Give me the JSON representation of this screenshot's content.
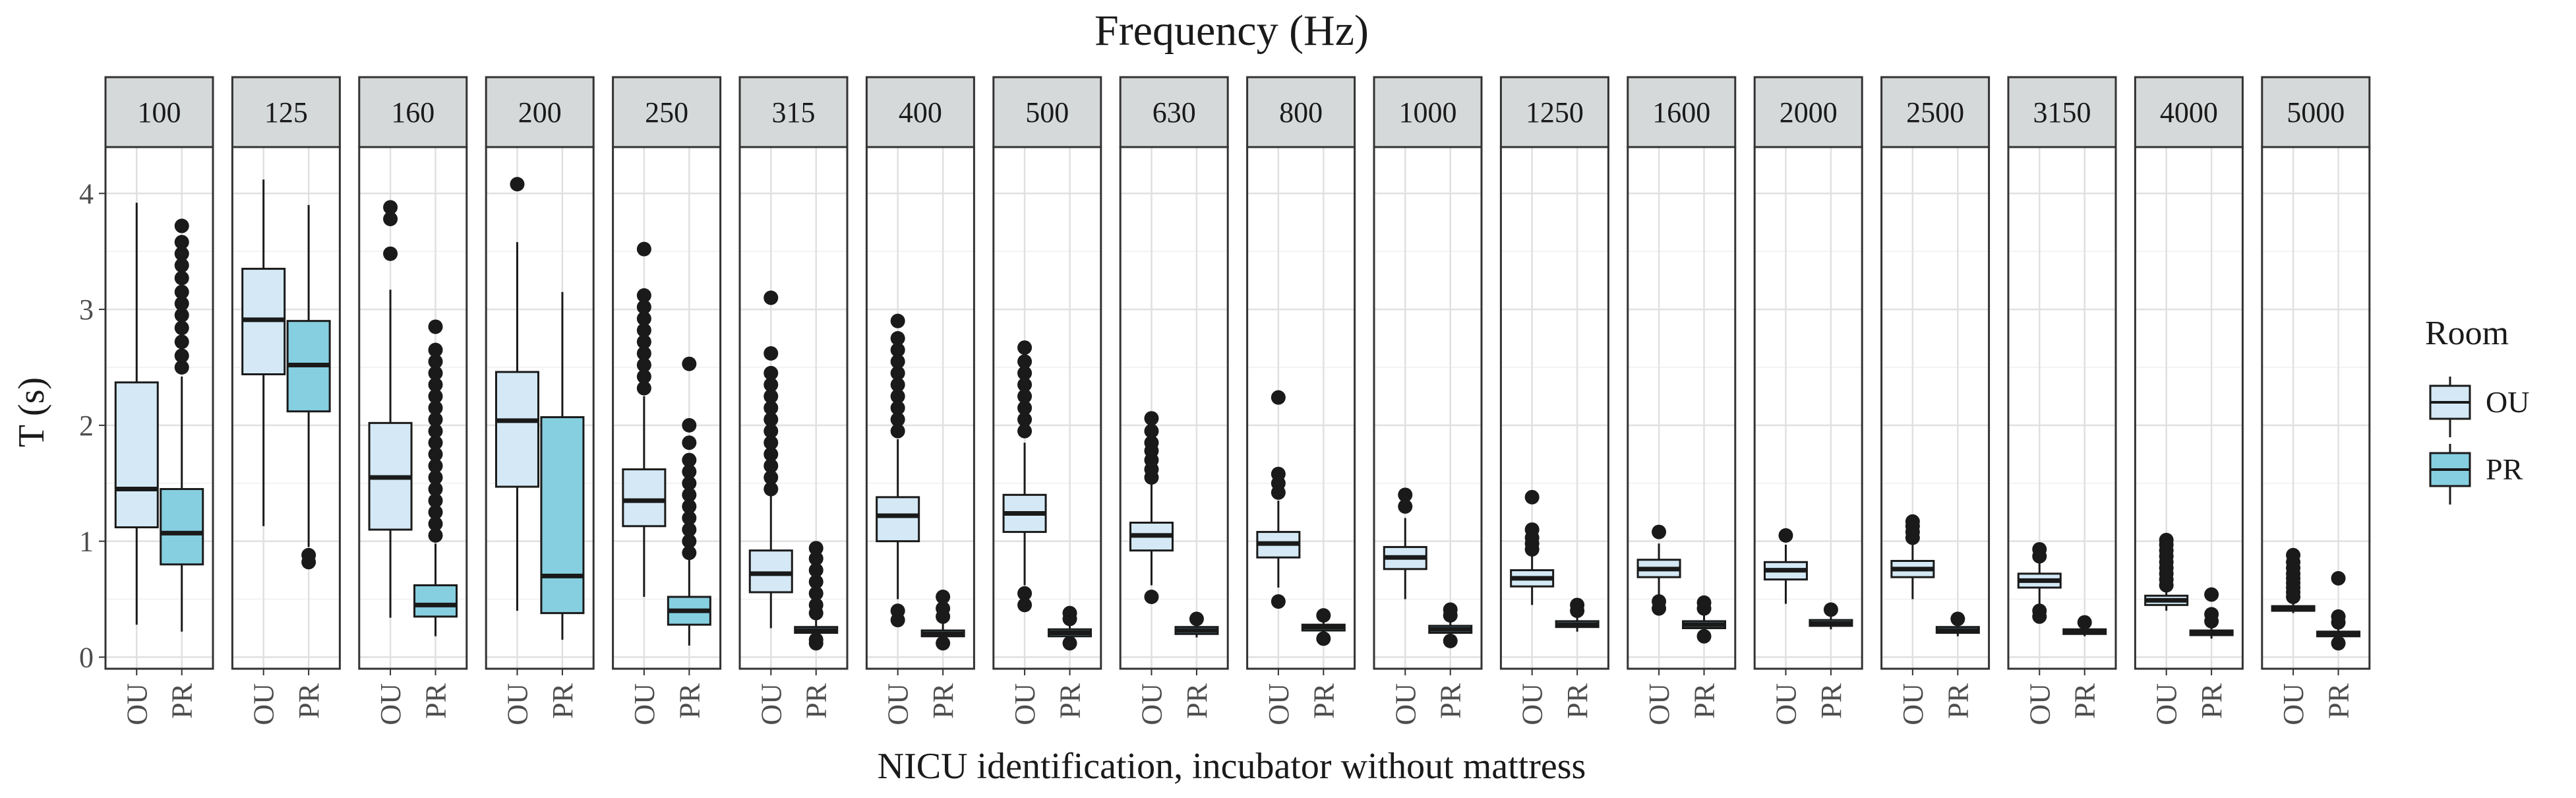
{
  "chart_data": {
    "type": "boxplot",
    "title": "Frequency (Hz)",
    "xlabel": "NICU identification, incubator without mattress",
    "ylabel": "T (s)",
    "ylim": [
      -0.1,
      4.4
    ],
    "yticks": [
      0,
      1,
      2,
      3,
      4
    ],
    "categories": [
      "OU",
      "PR"
    ],
    "legend": {
      "title": "Room",
      "position": "right",
      "entries": [
        {
          "label": "OU",
          "color": "#d4e9f5"
        },
        {
          "label": "PR",
          "color": "#86cfe0"
        }
      ]
    },
    "facets": [
      {
        "label": "100",
        "boxes": [
          {
            "group": "OU",
            "min": 0.28,
            "q1": 1.12,
            "median": 1.45,
            "q3": 2.37,
            "max": 3.92,
            "outliers": []
          },
          {
            "group": "PR",
            "min": 0.22,
            "q1": 0.8,
            "median": 1.07,
            "q3": 1.45,
            "max": 2.42,
            "outliers": [
              2.5,
              2.6,
              2.72,
              2.84,
              2.95,
              3.05,
              3.15,
              3.27,
              3.38,
              3.48,
              3.58,
              3.72
            ]
          }
        ]
      },
      {
        "label": "125",
        "boxes": [
          {
            "group": "OU",
            "min": 1.13,
            "q1": 2.44,
            "median": 2.91,
            "q3": 3.35,
            "max": 4.12,
            "outliers": []
          },
          {
            "group": "PR",
            "min": 0.95,
            "q1": 2.12,
            "median": 2.52,
            "q3": 2.9,
            "max": 3.9,
            "outliers": [
              0.82,
              0.88
            ]
          }
        ]
      },
      {
        "label": "160",
        "boxes": [
          {
            "group": "OU",
            "min": 0.34,
            "q1": 1.1,
            "median": 1.55,
            "q3": 2.02,
            "max": 3.17,
            "outliers": [
              3.48,
              3.78,
              3.88
            ]
          },
          {
            "group": "PR",
            "min": 0.18,
            "q1": 0.35,
            "median": 0.45,
            "q3": 0.62,
            "max": 0.98,
            "outliers": [
              1.05,
              1.15,
              1.25,
              1.35,
              1.45,
              1.55,
              1.65,
              1.75,
              1.85,
              1.95,
              2.05,
              2.15,
              2.25,
              2.35,
              2.45,
              2.55,
              2.65,
              2.85
            ]
          }
        ]
      },
      {
        "label": "200",
        "boxes": [
          {
            "group": "OU",
            "min": 0.4,
            "q1": 1.47,
            "median": 2.04,
            "q3": 2.46,
            "max": 3.58,
            "outliers": [
              4.08
            ]
          },
          {
            "group": "PR",
            "min": 0.15,
            "q1": 0.38,
            "median": 0.7,
            "q3": 2.07,
            "max": 3.15,
            "outliers": []
          }
        ]
      },
      {
        "label": "250",
        "boxes": [
          {
            "group": "OU",
            "min": 0.52,
            "q1": 1.13,
            "median": 1.35,
            "q3": 1.62,
            "max": 2.25,
            "outliers": [
              2.32,
              2.42,
              2.52,
              2.62,
              2.72,
              2.82,
              2.92,
              3.02,
              3.12,
              3.52
            ]
          },
          {
            "group": "PR",
            "min": 0.1,
            "q1": 0.28,
            "median": 0.4,
            "q3": 0.52,
            "max": 0.85,
            "outliers": [
              0.9,
              1.0,
              1.1,
              1.2,
              1.3,
              1.4,
              1.5,
              1.6,
              1.7,
              1.85,
              2.0,
              2.53
            ]
          }
        ]
      },
      {
        "label": "315",
        "boxes": [
          {
            "group": "OU",
            "min": 0.25,
            "q1": 0.56,
            "median": 0.72,
            "q3": 0.92,
            "max": 1.4,
            "outliers": [
              1.45,
              1.55,
              1.65,
              1.75,
              1.85,
              1.95,
              2.05,
              2.15,
              2.25,
              2.35,
              2.45,
              2.62,
              3.1
            ]
          },
          {
            "group": "PR",
            "min": 0.18,
            "q1": 0.21,
            "median": 0.23,
            "q3": 0.26,
            "max": 0.32,
            "outliers": [
              0.12,
              0.15,
              0.38,
              0.45,
              0.55,
              0.65,
              0.75,
              0.85,
              0.94
            ]
          }
        ]
      },
      {
        "label": "400",
        "boxes": [
          {
            "group": "OU",
            "min": 0.5,
            "q1": 1.0,
            "median": 1.22,
            "q3": 1.38,
            "max": 1.88,
            "outliers": [
              0.32,
              0.4,
              1.95,
              2.05,
              2.15,
              2.25,
              2.35,
              2.45,
              2.55,
              2.65,
              2.75,
              2.9
            ]
          },
          {
            "group": "PR",
            "min": 0.15,
            "q1": 0.18,
            "median": 0.2,
            "q3": 0.23,
            "max": 0.3,
            "outliers": [
              0.12,
              0.35,
              0.42,
              0.52
            ]
          }
        ]
      },
      {
        "label": "500",
        "boxes": [
          {
            "group": "OU",
            "min": 0.62,
            "q1": 1.08,
            "median": 1.24,
            "q3": 1.4,
            "max": 1.85,
            "outliers": [
              0.45,
              0.55,
              1.95,
              2.05,
              2.15,
              2.25,
              2.35,
              2.45,
              2.55,
              2.67
            ]
          },
          {
            "group": "PR",
            "min": 0.15,
            "q1": 0.18,
            "median": 0.21,
            "q3": 0.24,
            "max": 0.3,
            "outliers": [
              0.12,
              0.33,
              0.38
            ]
          }
        ]
      },
      {
        "label": "630",
        "boxes": [
          {
            "group": "OU",
            "min": 0.62,
            "q1": 0.92,
            "median": 1.05,
            "q3": 1.16,
            "max": 1.5,
            "outliers": [
              0.52,
              1.55,
              1.62,
              1.7,
              1.78,
              1.85,
              1.95,
              2.06
            ]
          },
          {
            "group": "PR",
            "min": 0.17,
            "q1": 0.2,
            "median": 0.23,
            "q3": 0.26,
            "max": 0.3,
            "outliers": [
              0.33
            ]
          }
        ]
      },
      {
        "label": "800",
        "boxes": [
          {
            "group": "OU",
            "min": 0.6,
            "q1": 0.86,
            "median": 0.98,
            "q3": 1.08,
            "max": 1.35,
            "outliers": [
              0.48,
              1.42,
              1.5,
              1.58,
              2.24
            ]
          },
          {
            "group": "PR",
            "min": 0.2,
            "q1": 0.23,
            "median": 0.26,
            "q3": 0.28,
            "max": 0.32,
            "outliers": [
              0.16,
              0.36
            ]
          }
        ]
      },
      {
        "label": "1000",
        "boxes": [
          {
            "group": "OU",
            "min": 0.5,
            "q1": 0.76,
            "median": 0.86,
            "q3": 0.95,
            "max": 1.2,
            "outliers": [
              1.3,
              1.4
            ]
          },
          {
            "group": "PR",
            "min": 0.18,
            "q1": 0.21,
            "median": 0.24,
            "q3": 0.27,
            "max": 0.32,
            "outliers": [
              0.14,
              0.36,
              0.41
            ]
          }
        ]
      },
      {
        "label": "1250",
        "boxes": [
          {
            "group": "OU",
            "min": 0.45,
            "q1": 0.61,
            "median": 0.68,
            "q3": 0.75,
            "max": 0.88,
            "outliers": [
              0.93,
              0.98,
              1.03,
              1.1,
              1.38
            ]
          },
          {
            "group": "PR",
            "min": 0.22,
            "q1": 0.26,
            "median": 0.28,
            "q3": 0.31,
            "max": 0.36,
            "outliers": [
              0.4,
              0.45
            ]
          }
        ]
      },
      {
        "label": "1600",
        "boxes": [
          {
            "group": "OU",
            "min": 0.52,
            "q1": 0.69,
            "median": 0.76,
            "q3": 0.84,
            "max": 0.98,
            "outliers": [
              0.42,
              0.48,
              1.08
            ]
          },
          {
            "group": "PR",
            "min": 0.22,
            "q1": 0.25,
            "median": 0.28,
            "q3": 0.31,
            "max": 0.37,
            "outliers": [
              0.18,
              0.42,
              0.47
            ]
          }
        ]
      },
      {
        "label": "2000",
        "boxes": [
          {
            "group": "OU",
            "min": 0.46,
            "q1": 0.67,
            "median": 0.75,
            "q3": 0.82,
            "max": 0.97,
            "outliers": [
              1.05
            ]
          },
          {
            "group": "PR",
            "min": 0.24,
            "q1": 0.27,
            "median": 0.29,
            "q3": 0.32,
            "max": 0.36,
            "outliers": [
              0.41
            ]
          }
        ]
      },
      {
        "label": "2500",
        "boxes": [
          {
            "group": "OU",
            "min": 0.5,
            "q1": 0.69,
            "median": 0.76,
            "q3": 0.83,
            "max": 0.98,
            "outliers": [
              1.03,
              1.08,
              1.13,
              1.17
            ]
          },
          {
            "group": "PR",
            "min": 0.18,
            "q1": 0.21,
            "median": 0.23,
            "q3": 0.26,
            "max": 0.3,
            "outliers": [
              0.33
            ]
          }
        ]
      },
      {
        "label": "3150",
        "boxes": [
          {
            "group": "OU",
            "min": 0.45,
            "q1": 0.6,
            "median": 0.66,
            "q3": 0.72,
            "max": 0.82,
            "outliers": [
              0.35,
              0.4,
              0.87,
              0.93
            ]
          },
          {
            "group": "PR",
            "min": 0.18,
            "q1": 0.2,
            "median": 0.22,
            "q3": 0.24,
            "max": 0.27,
            "outliers": [
              0.3
            ]
          }
        ]
      },
      {
        "label": "4000",
        "boxes": [
          {
            "group": "OU",
            "min": 0.4,
            "q1": 0.45,
            "median": 0.49,
            "q3": 0.53,
            "max": 0.58,
            "outliers": [
              0.62,
              0.67,
              0.72,
              0.77,
              0.82,
              0.87,
              0.92,
              0.97,
              1.01
            ]
          },
          {
            "group": "PR",
            "min": 0.16,
            "q1": 0.19,
            "median": 0.21,
            "q3": 0.23,
            "max": 0.27,
            "outliers": [
              0.31,
              0.37,
              0.54
            ]
          }
        ]
      },
      {
        "label": "5000",
        "boxes": [
          {
            "group": "OU",
            "min": 0.38,
            "q1": 0.4,
            "median": 0.42,
            "q3": 0.44,
            "max": 0.48,
            "outliers": [
              0.52,
              0.56,
              0.6,
              0.64,
              0.68,
              0.72,
              0.77,
              0.82,
              0.88
            ]
          },
          {
            "group": "PR",
            "min": 0.15,
            "q1": 0.18,
            "median": 0.2,
            "q3": 0.22,
            "max": 0.26,
            "outliers": [
              0.12,
              0.3,
              0.35,
              0.68
            ]
          }
        ]
      }
    ]
  }
}
